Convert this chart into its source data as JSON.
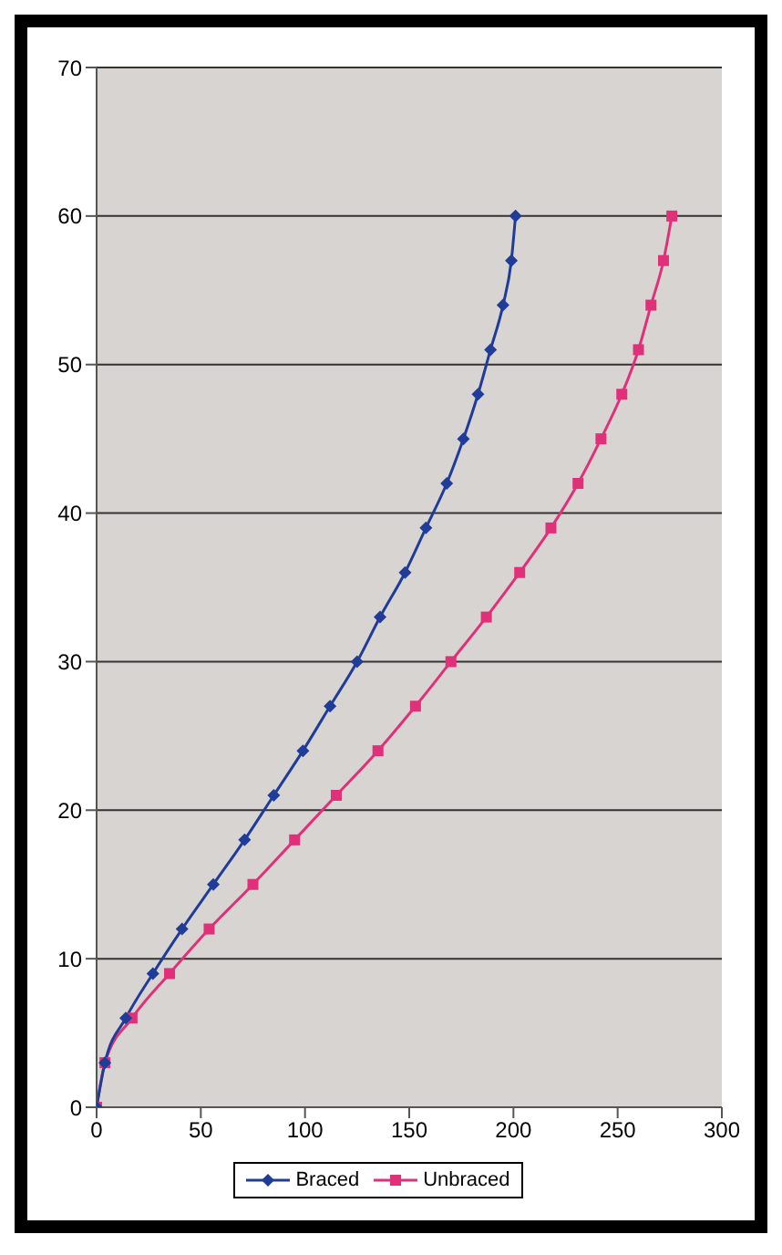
{
  "chart_data": {
    "type": "line",
    "legend": "bottom",
    "grid": "y",
    "marker": "diamond",
    "xlim": [
      0,
      300
    ],
    "xticks": [
      0,
      50,
      100,
      150,
      200,
      250,
      300
    ],
    "ylim": [
      0,
      70
    ],
    "yticks": [
      0,
      10,
      20,
      30,
      40,
      50,
      60,
      70
    ],
    "series": [
      {
        "name": "Braced",
        "color": "#1f3c99",
        "x": [
          0,
          4,
          14,
          27,
          41,
          56,
          71,
          85,
          99,
          112,
          125,
          136,
          148,
          158,
          168,
          176,
          183,
          189,
          195,
          199,
          201
        ],
        "values": [
          0,
          3,
          6,
          9,
          12,
          15,
          18,
          21,
          24,
          27,
          30,
          33,
          36,
          39,
          42,
          45,
          48,
          51,
          54,
          57,
          60
        ]
      },
      {
        "name": "Unbraced",
        "color": "#e0307a",
        "marker": "square",
        "x": [
          0,
          4,
          17,
          35,
          54,
          75,
          95,
          115,
          135,
          153,
          170,
          187,
          203,
          218,
          231,
          242,
          252,
          260,
          266,
          272,
          276
        ],
        "values": [
          0,
          3,
          6,
          9,
          12,
          15,
          18,
          21,
          24,
          27,
          30,
          33,
          36,
          39,
          42,
          45,
          48,
          51,
          54,
          57,
          60
        ]
      }
    ]
  }
}
